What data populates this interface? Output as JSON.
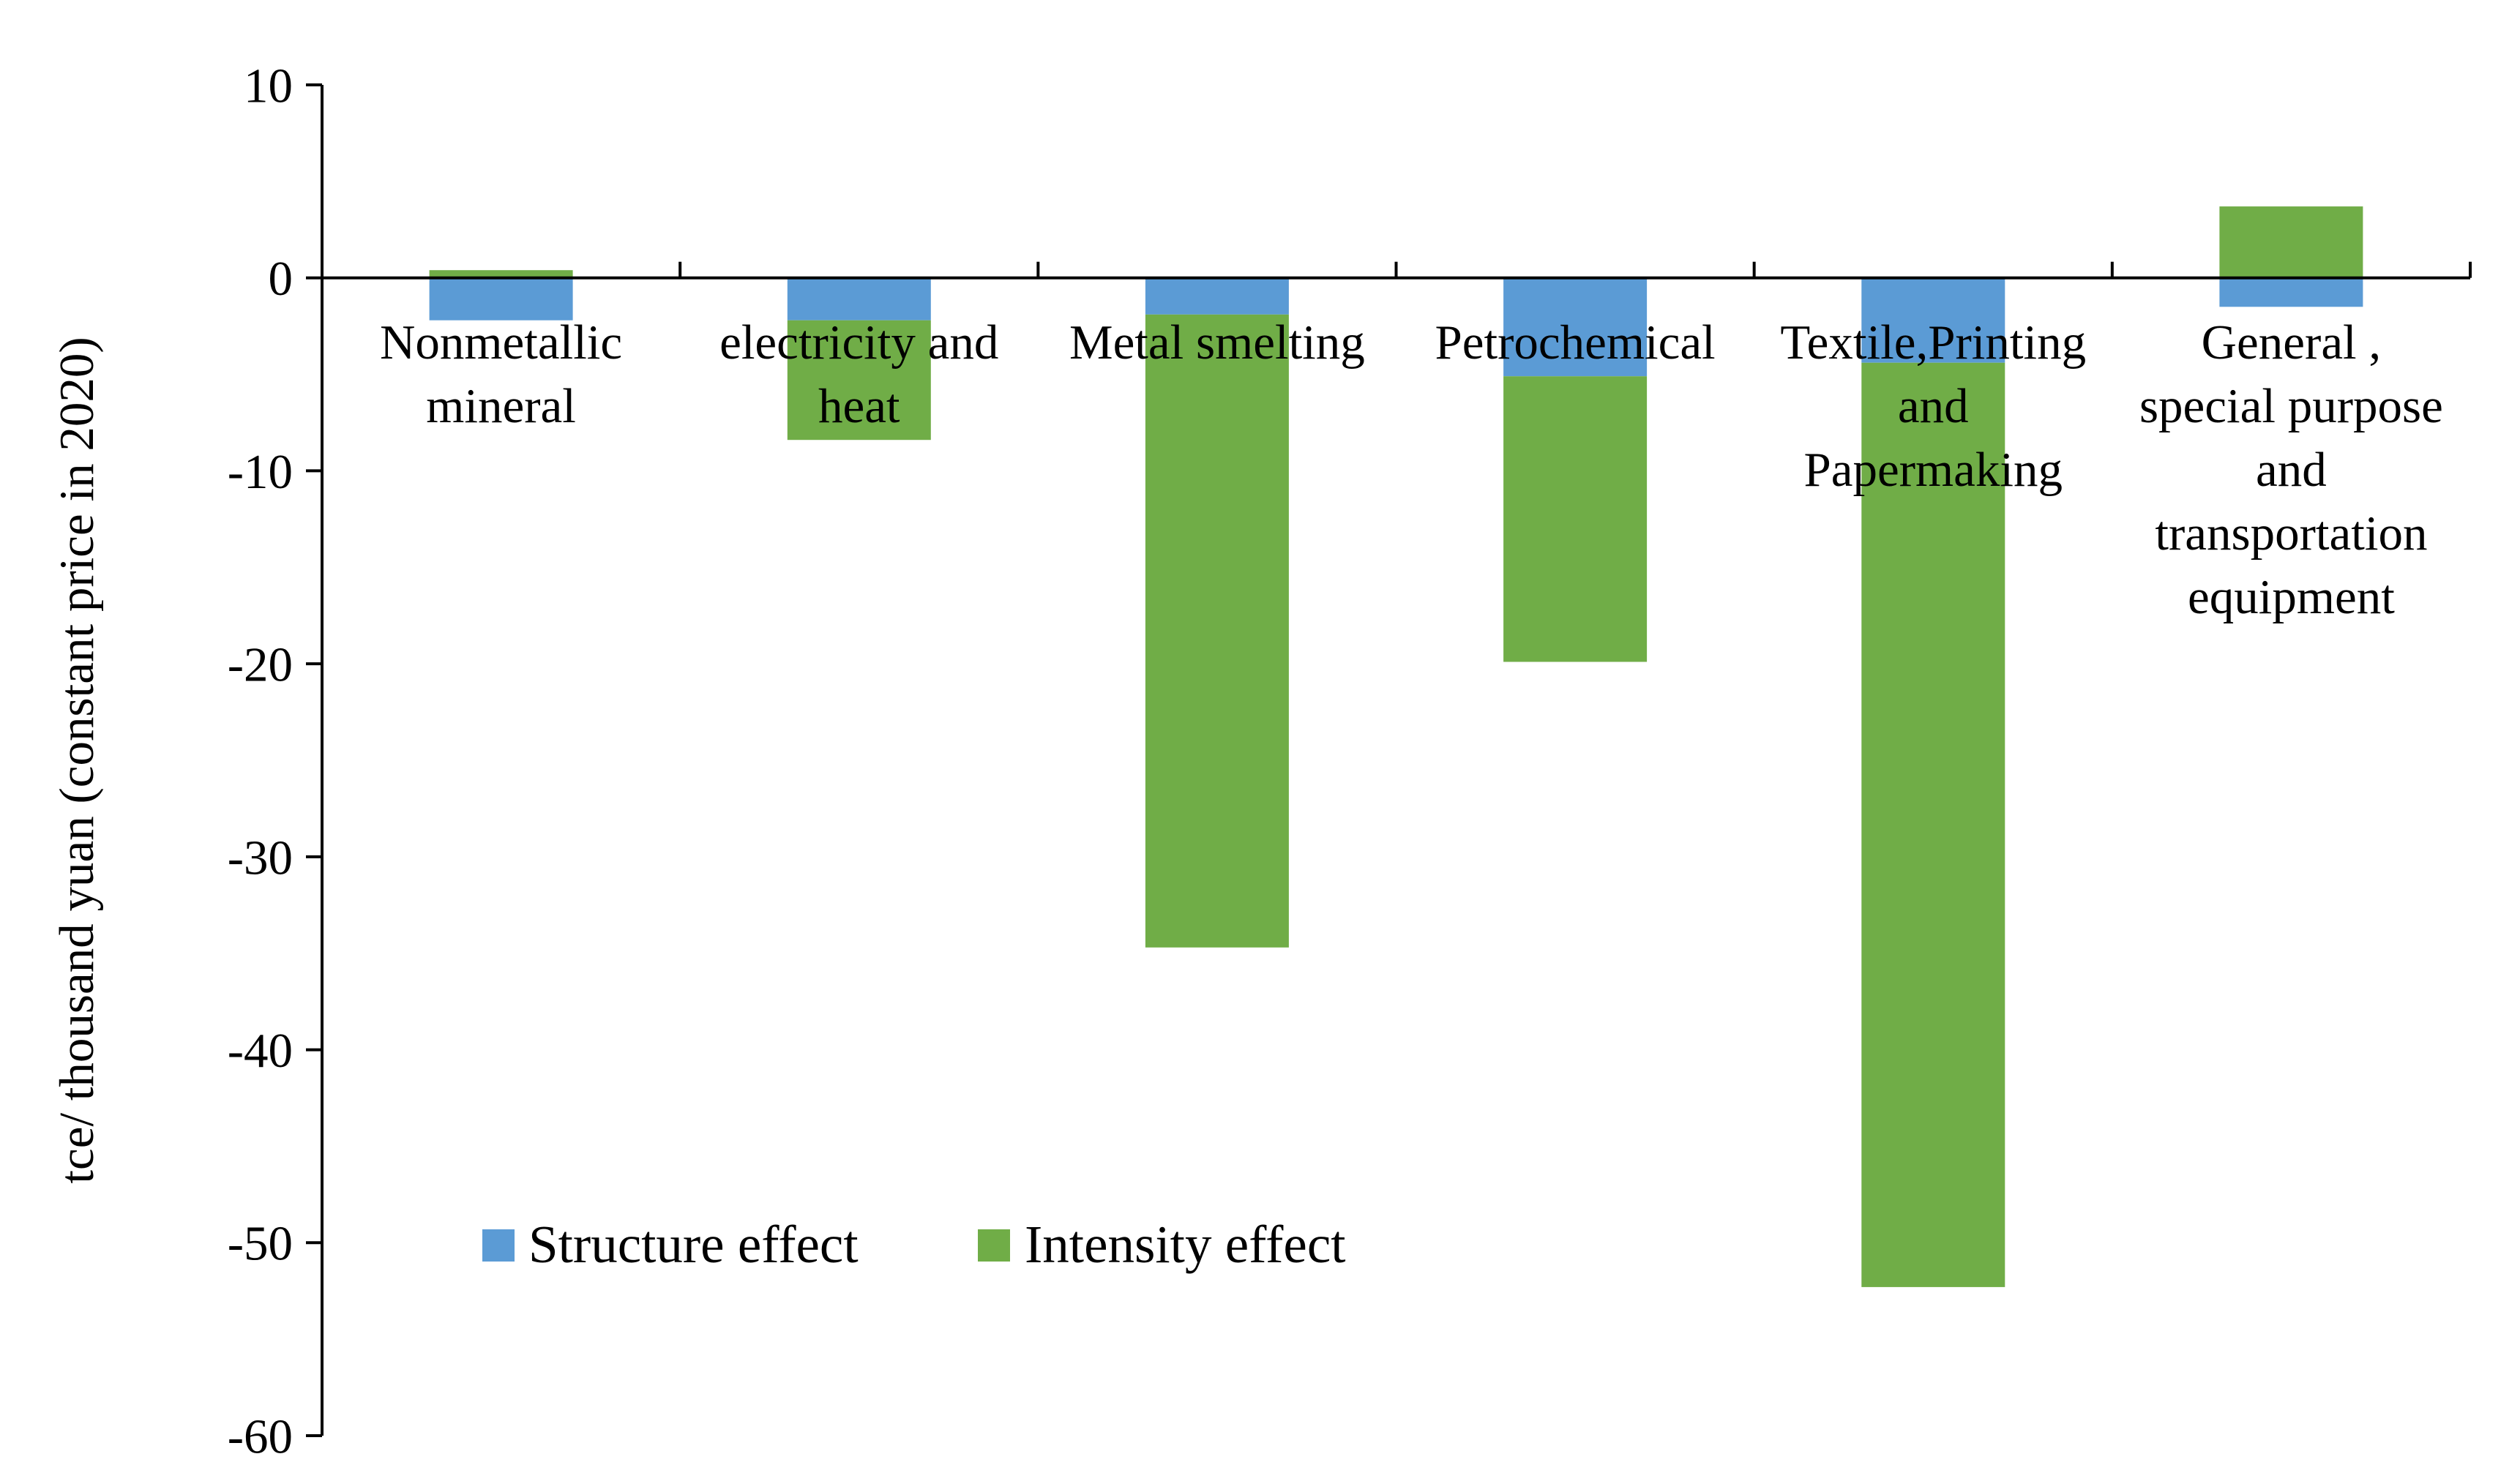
{
  "chart_data": {
    "type": "bar",
    "stacked": true,
    "title": "",
    "xlabel": "",
    "ylabel": "tce/ thousand yuan (constant price in 2020)",
    "ylim": [
      -60,
      10
    ],
    "yticks": [
      10,
      0,
      -10,
      -20,
      -30,
      -40,
      -50,
      -60
    ],
    "grid": false,
    "legend_position": "bottom-left",
    "categories": [
      [
        "Nonmetallic",
        "mineral"
      ],
      [
        "electricity and",
        "heat"
      ],
      [
        "Metal smelting"
      ],
      [
        "Petrochemical"
      ],
      [
        "Textile,Printing",
        "and",
        "Papermaking"
      ],
      [
        "General ,",
        "special purpose",
        "and",
        "transportation",
        "equipment"
      ]
    ],
    "series": [
      {
        "name": "Structure effect",
        "color": "#5B9BD5",
        "values": [
          -2.2,
          -2.2,
          -1.9,
          -5.1,
          -4.4,
          -1.5
        ]
      },
      {
        "name": "Intensity effect",
        "color": "#70AD47",
        "values": [
          0.4,
          -6.2,
          -32.8,
          -14.8,
          -47.9,
          3.7
        ]
      }
    ]
  }
}
